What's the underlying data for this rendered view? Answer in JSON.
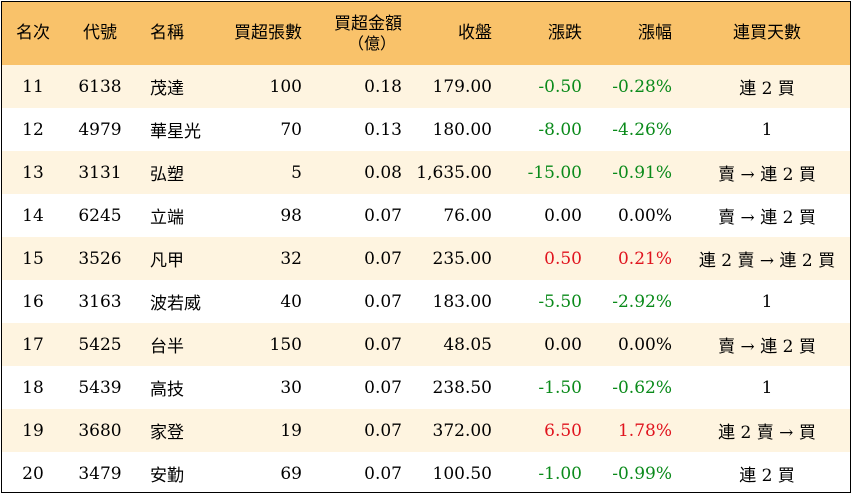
{
  "headers": {
    "rank": "名次",
    "code": "代號",
    "name": "名稱",
    "net_buy_lots": "買超張數",
    "net_buy_amount_line1": "買超金額",
    "net_buy_amount_line2": "（億）",
    "close": "收盤",
    "change": "漲跌",
    "pct_change": "漲幅",
    "streak": "連買天數"
  },
  "colors": {
    "header_bg": "#f9c26a",
    "alt_row_bg": "#fef4e0",
    "up": "#e0141e",
    "down": "#0a8a1a"
  },
  "rows": [
    {
      "rank": "11",
      "code": "6138",
      "name": "茂達",
      "lots": "100",
      "amount": "0.18",
      "close": "179.00",
      "change": "-0.50",
      "pct": "-0.28%",
      "streak": "連 2 買",
      "dir": "neg"
    },
    {
      "rank": "12",
      "code": "4979",
      "name": "華星光",
      "lots": "70",
      "amount": "0.13",
      "close": "180.00",
      "change": "-8.00",
      "pct": "-4.26%",
      "streak": "1",
      "dir": "neg"
    },
    {
      "rank": "13",
      "code": "3131",
      "name": "弘塑",
      "lots": "5",
      "amount": "0.08",
      "close": "1,635.00",
      "change": "-15.00",
      "pct": "-0.91%",
      "streak": "賣 → 連 2 買",
      "dir": "neg"
    },
    {
      "rank": "14",
      "code": "6245",
      "name": "立端",
      "lots": "98",
      "amount": "0.07",
      "close": "76.00",
      "change": "0.00",
      "pct": "0.00%",
      "streak": "賣 → 連 2 買",
      "dir": "zero"
    },
    {
      "rank": "15",
      "code": "3526",
      "name": "凡甲",
      "lots": "32",
      "amount": "0.07",
      "close": "235.00",
      "change": "0.50",
      "pct": "0.21%",
      "streak": "連 2 賣 → 連 2 買",
      "dir": "pos"
    },
    {
      "rank": "16",
      "code": "3163",
      "name": "波若威",
      "lots": "40",
      "amount": "0.07",
      "close": "183.00",
      "change": "-5.50",
      "pct": "-2.92%",
      "streak": "1",
      "dir": "neg"
    },
    {
      "rank": "17",
      "code": "5425",
      "name": "台半",
      "lots": "150",
      "amount": "0.07",
      "close": "48.05",
      "change": "0.00",
      "pct": "0.00%",
      "streak": "賣 → 連 2 買",
      "dir": "zero"
    },
    {
      "rank": "18",
      "code": "5439",
      "name": "高技",
      "lots": "30",
      "amount": "0.07",
      "close": "238.50",
      "change": "-1.50",
      "pct": "-0.62%",
      "streak": "1",
      "dir": "neg"
    },
    {
      "rank": "19",
      "code": "3680",
      "name": "家登",
      "lots": "19",
      "amount": "0.07",
      "close": "372.00",
      "change": "6.50",
      "pct": "1.78%",
      "streak": "連 2 賣 → 買",
      "dir": "pos"
    },
    {
      "rank": "20",
      "code": "3479",
      "name": "安勤",
      "lots": "69",
      "amount": "0.07",
      "close": "100.50",
      "change": "-1.00",
      "pct": "-0.99%",
      "streak": "連 2 買",
      "dir": "neg"
    }
  ]
}
